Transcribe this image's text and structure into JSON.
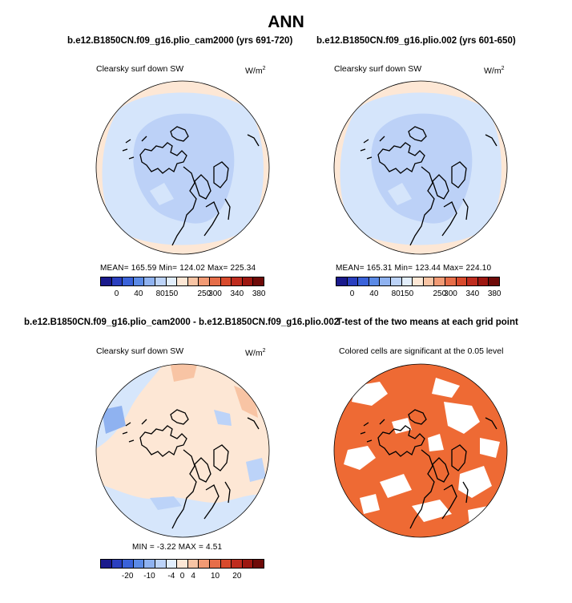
{
  "title": "ANN",
  "panels": [
    {
      "title": "b.e12.B1850CN.f09_g16.plio_cam2000 (yrs 691-720)",
      "variable": "Clearsky surf down SW",
      "units_base": "W/m",
      "units_exp": "2",
      "stats": "MEAN=  165.59   Min=  124.02   Max=  225.34",
      "colorbar_colors": [
        "#1a1a8c",
        "#2a3fbf",
        "#3a62d9",
        "#5b8ae6",
        "#8fb2f0",
        "#bcd3f8",
        "#e2eefc",
        "#fde7d5",
        "#f8c4a4",
        "#f19a74",
        "#e66d48",
        "#d84a2c",
        "#bf2c1e",
        "#9d1710",
        "#6e0a08"
      ],
      "colorbar_ticks": [
        "0",
        "40",
        "80",
        "150",
        "250",
        "300",
        "340",
        "380"
      ],
      "fills": {
        "outer": "#fde7d5",
        "mid": "#d5e5fb",
        "inner": "#bcd1f7"
      }
    },
    {
      "title": "b.e12.B1850CN.f09_g16.plio.002 (yrs 601-650)",
      "variable": "Clearsky surf down SW",
      "units_base": "W/m",
      "units_exp": "2",
      "stats": "MEAN=  165.31   Min=  123.44   Max=  224.10",
      "colorbar_colors": [
        "#1a1a8c",
        "#2a3fbf",
        "#3a62d9",
        "#5b8ae6",
        "#8fb2f0",
        "#bcd3f8",
        "#e2eefc",
        "#fde7d5",
        "#f8c4a4",
        "#f19a74",
        "#e66d48",
        "#d84a2c",
        "#bf2c1e",
        "#9d1710",
        "#6e0a08"
      ],
      "colorbar_ticks": [
        "0",
        "40",
        "80",
        "150",
        "250",
        "300",
        "340",
        "380"
      ],
      "fills": {
        "outer": "#fde7d5",
        "mid": "#d5e5fb",
        "inner": "#bcd1f7"
      }
    },
    {
      "title": "b.e12.B1850CN.f09_g16.plio_cam2000 - b.e12.B1850CN.f09_g16.plio.002",
      "variable": "Clearsky surf down SW",
      "units_base": "W/m",
      "units_exp": "2",
      "stats": "MIN =   -3.22  MAX =    4.51",
      "colorbar_colors": [
        "#1a1a8c",
        "#2a3fbf",
        "#3a62d9",
        "#5b8ae6",
        "#8fb2f0",
        "#bcd3f8",
        "#e2eefc",
        "#fde7d5",
        "#f8c4a4",
        "#f19a74",
        "#e66d48",
        "#d84a2c",
        "#bf2c1e",
        "#9d1710",
        "#6e0a08"
      ],
      "colorbar_ticks": [
        "-20",
        "-10",
        "-4",
        "0",
        "4",
        "10",
        "20"
      ],
      "fills": {
        "outer": "#fde7d5",
        "mid": "#d6e6fb",
        "inner": "#fde7d5"
      }
    },
    {
      "title": "T-test of the two means at each grid point",
      "subtitle": "Colored cells are significant at the 0.05 level",
      "fills": {
        "significant": "#ee6a34",
        "insignificant": "#ffffff"
      }
    }
  ]
}
